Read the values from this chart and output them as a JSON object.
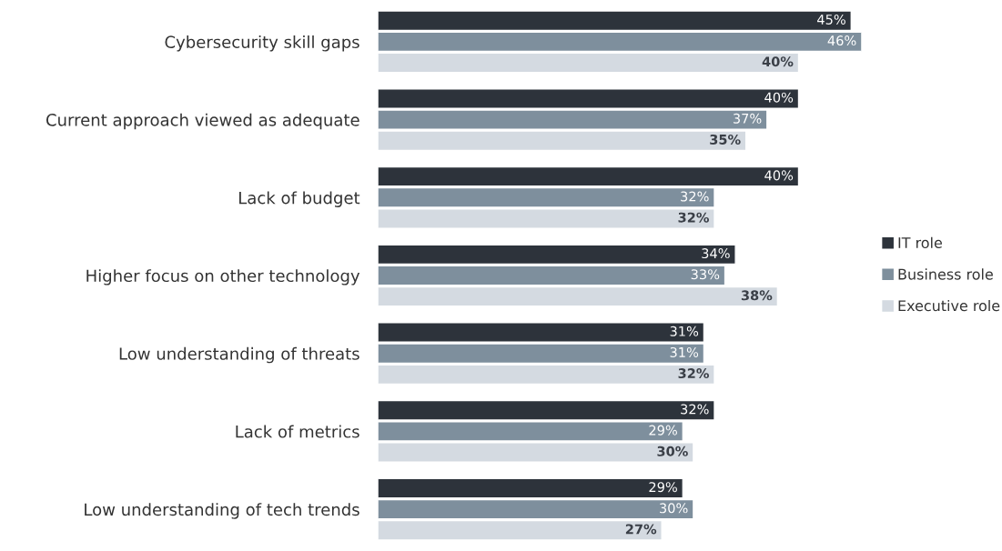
{
  "chart_data": {
    "type": "bar",
    "orientation": "horizontal",
    "categories": [
      "Cybersecurity skill gaps",
      "Current approach viewed as adequate",
      "Lack of budget",
      "Higher focus on other technology",
      "Low understanding of threats",
      "Lack of metrics",
      "Low understanding of tech trends"
    ],
    "series": [
      {
        "name": "IT role",
        "color": "#2d333b",
        "values": [
          45,
          40,
          40,
          34,
          31,
          32,
          29
        ],
        "value_labels": [
          "45%",
          "40%",
          "40%",
          "34%",
          "31%",
          "32%",
          "29%"
        ]
      },
      {
        "name": "Business role",
        "color": "#7e8f9d",
        "values": [
          46,
          37,
          32,
          33,
          31,
          29,
          30
        ],
        "value_labels": [
          "46%",
          "37%",
          "32%",
          "33%",
          "31%",
          "29%",
          "30%"
        ]
      },
      {
        "name": "Executive role",
        "color": "#d4dae1",
        "values": [
          40,
          35,
          32,
          38,
          32,
          30,
          27
        ],
        "value_labels": [
          "40%",
          "35%",
          "32%",
          "38%",
          "32%",
          "30%",
          "27%"
        ]
      }
    ],
    "legend": "right"
  }
}
